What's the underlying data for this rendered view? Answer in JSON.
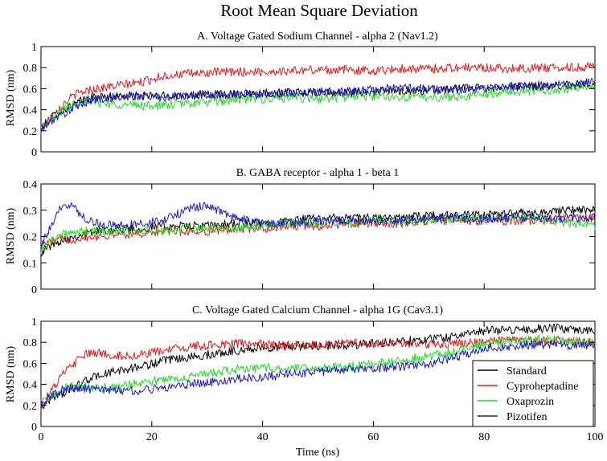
{
  "figure_title": "Root Mean Square Deviation",
  "colors": {
    "Standard": "#000000",
    "Cyproheptadine": "#e41a1c",
    "Oxaprozin": "#22dd22",
    "Pizotifen": "#1a1acc"
  },
  "chart_data": [
    {
      "type": "line",
      "title": "A. Voltage Gated Sodium Channel - alpha 2 (Nav1.2)",
      "xlabel": "",
      "ylabel": "RMSD (nm)",
      "xlim": [
        0,
        100
      ],
      "ylim": [
        0,
        1
      ],
      "yticks": [
        0,
        0.2,
        0.4,
        0.6,
        0.8,
        1
      ],
      "yticklabels": [
        "0",
        "0.2",
        "0.4",
        "0.6",
        "0.8",
        "1"
      ],
      "show_xticklabels": false,
      "x": [
        0,
        2,
        4,
        6,
        8,
        10,
        14,
        18,
        22,
        26,
        30,
        35,
        40,
        45,
        50,
        55,
        60,
        65,
        70,
        75,
        80,
        85,
        90,
        95,
        100
      ],
      "series": [
        {
          "name": "Standard",
          "values": [
            0.22,
            0.33,
            0.4,
            0.45,
            0.5,
            0.52,
            0.53,
            0.53,
            0.53,
            0.54,
            0.54,
            0.55,
            0.56,
            0.56,
            0.56,
            0.56,
            0.57,
            0.58,
            0.58,
            0.6,
            0.61,
            0.62,
            0.62,
            0.63,
            0.65
          ]
        },
        {
          "name": "Cyproheptadine",
          "values": [
            0.22,
            0.34,
            0.45,
            0.54,
            0.58,
            0.6,
            0.63,
            0.66,
            0.72,
            0.74,
            0.75,
            0.76,
            0.76,
            0.77,
            0.78,
            0.78,
            0.77,
            0.79,
            0.79,
            0.8,
            0.8,
            0.79,
            0.8,
            0.8,
            0.81
          ]
        },
        {
          "name": "Oxaprozin",
          "values": [
            0.23,
            0.3,
            0.4,
            0.46,
            0.48,
            0.47,
            0.45,
            0.44,
            0.44,
            0.46,
            0.47,
            0.49,
            0.5,
            0.51,
            0.5,
            0.52,
            0.53,
            0.52,
            0.52,
            0.52,
            0.55,
            0.57,
            0.58,
            0.6,
            0.62
          ]
        },
        {
          "name": "Pizotifen",
          "values": [
            0.21,
            0.3,
            0.36,
            0.42,
            0.47,
            0.5,
            0.52,
            0.53,
            0.52,
            0.53,
            0.54,
            0.55,
            0.55,
            0.56,
            0.57,
            0.57,
            0.59,
            0.61,
            0.6,
            0.59,
            0.6,
            0.62,
            0.63,
            0.64,
            0.66
          ]
        }
      ]
    },
    {
      "type": "line",
      "title": "B. GABA receptor - alpha 1 - beta 1",
      "xlabel": "",
      "ylabel": "RMSD (nm)",
      "xlim": [
        0,
        100
      ],
      "ylim": [
        0,
        0.4
      ],
      "yticks": [
        0,
        0.1,
        0.2,
        0.3,
        0.4
      ],
      "yticklabels": [
        "0",
        "0.1",
        "0.2",
        "0.3",
        "0.4"
      ],
      "show_xticklabels": false,
      "x": [
        0,
        2,
        4,
        6,
        8,
        10,
        14,
        18,
        22,
        26,
        30,
        35,
        40,
        45,
        50,
        55,
        60,
        65,
        70,
        75,
        80,
        85,
        90,
        95,
        100
      ],
      "series": [
        {
          "name": "Standard",
          "values": [
            0.14,
            0.17,
            0.19,
            0.2,
            0.21,
            0.22,
            0.23,
            0.23,
            0.24,
            0.24,
            0.24,
            0.25,
            0.25,
            0.26,
            0.27,
            0.27,
            0.27,
            0.27,
            0.28,
            0.28,
            0.28,
            0.29,
            0.29,
            0.3,
            0.3
          ]
        },
        {
          "name": "Cyproheptadine",
          "values": [
            0.17,
            0.18,
            0.19,
            0.19,
            0.2,
            0.2,
            0.21,
            0.21,
            0.22,
            0.22,
            0.22,
            0.23,
            0.23,
            0.24,
            0.24,
            0.25,
            0.25,
            0.25,
            0.26,
            0.26,
            0.26,
            0.26,
            0.26,
            0.27,
            0.27
          ]
        },
        {
          "name": "Oxaprozin",
          "values": [
            0.15,
            0.19,
            0.21,
            0.21,
            0.22,
            0.22,
            0.22,
            0.22,
            0.22,
            0.23,
            0.23,
            0.23,
            0.24,
            0.25,
            0.25,
            0.25,
            0.26,
            0.26,
            0.26,
            0.27,
            0.27,
            0.27,
            0.27,
            0.25,
            0.24
          ]
        },
        {
          "name": "Pizotifen",
          "values": [
            0.17,
            0.24,
            0.33,
            0.31,
            0.27,
            0.25,
            0.24,
            0.25,
            0.26,
            0.3,
            0.32,
            0.27,
            0.25,
            0.25,
            0.26,
            0.26,
            0.26,
            0.26,
            0.27,
            0.27,
            0.27,
            0.27,
            0.27,
            0.27,
            0.27
          ]
        }
      ]
    },
    {
      "type": "line",
      "title": "C. Voltage Gated Calcium Channel - alpha 1G (Cav3.1)",
      "xlabel": "Time (ns)",
      "ylabel": "RMSD (nm)",
      "xlim": [
        0,
        100
      ],
      "ylim": [
        0,
        1
      ],
      "yticks": [
        0,
        0.2,
        0.4,
        0.6,
        0.8,
        1
      ],
      "yticklabels": [
        "0",
        "0.2",
        "0.4",
        "0.6",
        "0.8",
        "1"
      ],
      "xticks": [
        0,
        20,
        40,
        60,
        80,
        100
      ],
      "xticklabels": [
        "0",
        "20",
        "40",
        "60",
        "80",
        "100"
      ],
      "show_xticklabels": true,
      "legend_position": "bottom-right",
      "x": [
        0,
        2,
        4,
        6,
        8,
        10,
        14,
        18,
        22,
        26,
        30,
        35,
        40,
        45,
        50,
        55,
        60,
        65,
        70,
        75,
        80,
        85,
        90,
        95,
        100
      ],
      "series": [
        {
          "name": "Standard",
          "values": [
            0.18,
            0.28,
            0.32,
            0.38,
            0.43,
            0.48,
            0.53,
            0.57,
            0.62,
            0.65,
            0.68,
            0.72,
            0.75,
            0.76,
            0.77,
            0.77,
            0.79,
            0.81,
            0.83,
            0.86,
            0.91,
            0.92,
            0.93,
            0.93,
            0.91
          ]
        },
        {
          "name": "Cyproheptadine",
          "values": [
            0.2,
            0.35,
            0.5,
            0.6,
            0.68,
            0.7,
            0.67,
            0.68,
            0.72,
            0.75,
            0.77,
            0.79,
            0.78,
            0.77,
            0.78,
            0.79,
            0.79,
            0.79,
            0.78,
            0.79,
            0.8,
            0.82,
            0.81,
            0.81,
            0.8
          ]
        },
        {
          "name": "Oxaprozin",
          "values": [
            0.22,
            0.3,
            0.35,
            0.4,
            0.38,
            0.36,
            0.38,
            0.42,
            0.44,
            0.47,
            0.5,
            0.54,
            0.56,
            0.55,
            0.56,
            0.57,
            0.59,
            0.63,
            0.67,
            0.72,
            0.78,
            0.81,
            0.83,
            0.82,
            0.8
          ]
        },
        {
          "name": "Pizotifen",
          "values": [
            0.2,
            0.3,
            0.35,
            0.36,
            0.36,
            0.35,
            0.34,
            0.34,
            0.37,
            0.4,
            0.42,
            0.45,
            0.47,
            0.5,
            0.52,
            0.54,
            0.55,
            0.57,
            0.6,
            0.66,
            0.74,
            0.77,
            0.78,
            0.77,
            0.76
          ]
        }
      ]
    }
  ],
  "legend": {
    "entries": [
      "Standard",
      "Cyproheptadine",
      "Oxaprozin",
      "Pizotifen"
    ]
  }
}
